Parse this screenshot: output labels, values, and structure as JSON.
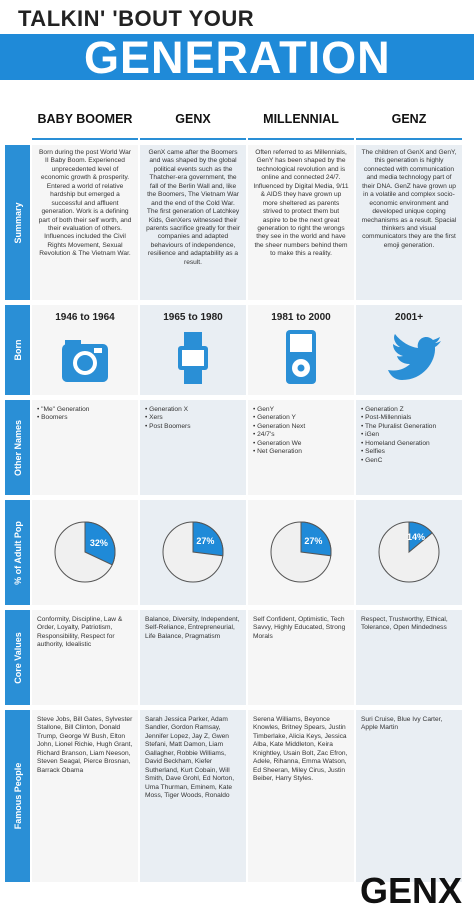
{
  "header": {
    "line1": "TALKIN' 'BOUT YOUR",
    "line2": "GENERATION"
  },
  "row_labels": [
    "Summary",
    "Born",
    "Other Names",
    "% of Adult Pop",
    "Core Values",
    "Famous People"
  ],
  "generations": [
    {
      "name": "BABY BOOMER",
      "summary": "Born during the post World War II Baby Boom. Experienced unprecedented level of economic growth & prosperity. Entered a world of relative hardship but emerged a successful and affluent generation. Work is a defining part of both their self worth, and their evaluation of others. Influences included the Civil Rights Movement, Sexual Revolution & The Vietnam War.",
      "born": "1946 to 1964",
      "other_names": [
        "\"Me\" Generation",
        "Boomers"
      ],
      "adult_pop": 32,
      "adult_pop_label": "32%",
      "core_values": "Conformity, Discipline, Law & Order, Loyalty, Patriotism, Responsibility, Respect for authority, Idealistic",
      "famous_people": "Steve Jobs, Bill Gates, Sylvester Stallone, Bill Clinton, Donald Trump, George W Bush, Elton John, Lionel Richie, Hugh Grant, Richard Branson, Liam Neeson, Steven Seagal, Pierce Brosnan, Barrack Obama"
    },
    {
      "name": "GENX",
      "summary": "GenX came after the Boomers and was shaped by the global political events such as the Thatcher-era government, the fall of the Berlin Wall and, like the Boomers, The Vietnam War and the end of the Cold War. The first generation of Latchkey Kids, GenXers witnessed their parents sacrifice greatly for their companies and adapted behaviours of independence, resilience and adaptability as a result.",
      "born": "1965 to 1980",
      "other_names": [
        "Generation X",
        "Xers",
        "Post Boomers"
      ],
      "adult_pop": 27,
      "adult_pop_label": "27%",
      "core_values": "Balance, Diversity, Independent, Self-Reliance, Entrepreneurial, Life Balance, Pragmatism",
      "famous_people": "Sarah Jessica Parker, Adam Sandler, Gordon Ramsay, Jennifer Lopez, Jay Z, Gwen Stefani, Matt Damon, Liam Gallagher, Robbie Williams, David Beckham, Kiefer Sutherland, Kurt Cobain, Will Smith, Dave Grohl, Ed Norton, Uma Thurman, Eminem, Kate Moss, Tiger Woods, Ronaldo"
    },
    {
      "name": "MILLENNIAL",
      "summary": "Often referred to as Millennials, GenY has been shaped by the technological revolution and is online and connected 24/7. Influenced by Digital Media, 9/11 & AIDS they have grown up more sheltered as parents strived to protect them but aspire to be the next great generation to right the wrongs they see in the world and have the sheer numbers behind them to make this a reality.",
      "born": "1981 to 2000",
      "other_names": [
        "GenY",
        "Generation Y",
        "Generation Next",
        "24/7's",
        "Generation We",
        "Net Generation"
      ],
      "adult_pop": 27,
      "adult_pop_label": "27%",
      "core_values": "Self Confident, Optimistic, Tech Savvy, Highly Educated, Strong Morals",
      "famous_people": "Serena Williams, Beyonce Knowles, Britney Spears, Justin Timberlake, Alicia Keys, Jessica Alba, Kate Middleton, Keira Knightley, Usain Bolt, Zac Efron, Adele, Rihanna, Emma Watson, Ed Sheeran, Miley Cirus, Justin Beiber, Harry Styles."
    },
    {
      "name": "GENZ",
      "summary": "The children of GenX and GenY, this generation is highly connected with communication and media technology part of their DNA. GenZ have grown up in a volatile and complex socio-economic environment and developed unique coping mechanisms as a result. Spacial thinkers and visual communicators they are the first emoji generation.",
      "born": "2001+",
      "other_names": [
        "Generation Z",
        "Post-Millennials",
        "The Pluralist Generation",
        "iGen",
        "Homeland Generation",
        "Selfies",
        "GenC"
      ],
      "adult_pop": 14,
      "adult_pop_label": "14%",
      "core_values": "Respect, Trustworthy, Ethical, Tolerance, Open Mindedness",
      "famous_people": "Suri Cruise, Blue Ivy Carter, Apple Martin"
    }
  ],
  "footer": {
    "logo": "GENX"
  }
}
